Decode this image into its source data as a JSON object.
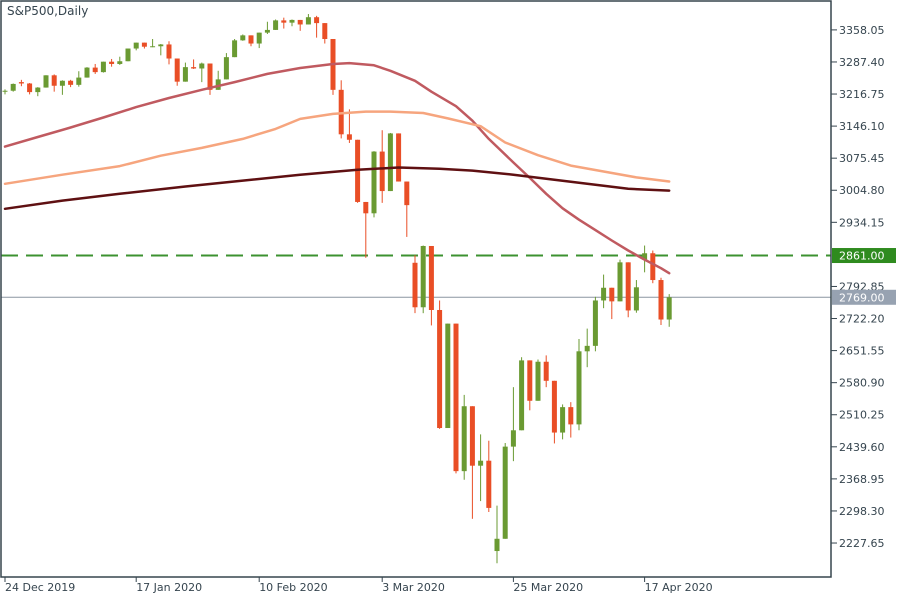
{
  "chart_data": {
    "type": "candlestick",
    "title": "S&P500,Daily",
    "symbol": "S&P500",
    "timeframe": "Daily",
    "colors": {
      "background": "#ffffff",
      "border": "#36454d",
      "axis_text": "#36454f",
      "bull": "#6a9a32",
      "bear": "#e94e26",
      "sma50": "#c05a60",
      "sma100": "#f6a57e",
      "sma200": "#5f1012",
      "dashed_level": "#3c9230",
      "dashed_badge_bg": "#2f8b1f",
      "price_line": "#8b96a1",
      "price_badge_bg": "#97a2b1",
      "badge_text": "#ffffff"
    },
    "price_axis": {
      "price_at_top": 3421.7,
      "price_at_bottom": 2152.8,
      "tick_values": [
        3358.05,
        3287.4,
        3216.75,
        3146.1,
        3075.45,
        3004.8,
        2934.15,
        2792.85,
        2722.2,
        2651.55,
        2580.9,
        2510.25,
        2439.6,
        2368.95,
        2298.3,
        2227.65
      ],
      "tick_labels": [
        "3358.05",
        "3287.40",
        "3216.75",
        "3146.10",
        "3075.45",
        "3004.80",
        "2934.15",
        "2792.85",
        "2722.20",
        "2651.55",
        "2580.90",
        "2510.25",
        "2439.60",
        "2368.95",
        "2298.30",
        "2227.65"
      ]
    },
    "time_axis": {
      "ticks": [
        {
          "label": "24 Dec 2019",
          "index": 0
        },
        {
          "label": "17 Jan 2020",
          "index": 16
        },
        {
          "label": "10 Feb 2020",
          "index": 31
        },
        {
          "label": "3 Mar 2020",
          "index": 46
        },
        {
          "label": "25 Mar 2020",
          "index": 62
        },
        {
          "label": "17 Apr 2020",
          "index": 78
        }
      ]
    },
    "hlines": [
      {
        "value": 2861.0,
        "label": "2861.00",
        "style": "dashed"
      },
      {
        "value": 2769.0,
        "label": "2769.00",
        "style": "solid"
      }
    ],
    "sma_lines": [
      {
        "name": "sma-50",
        "points": [
          [
            0,
            3101
          ],
          [
            4,
            3122
          ],
          [
            8,
            3143
          ],
          [
            12,
            3165
          ],
          [
            16,
            3188
          ],
          [
            20,
            3208
          ],
          [
            24,
            3226
          ],
          [
            28,
            3243
          ],
          [
            32,
            3261
          ],
          [
            36,
            3274
          ],
          [
            40,
            3283
          ],
          [
            42,
            3285
          ],
          [
            45,
            3280
          ],
          [
            47,
            3268
          ],
          [
            50,
            3246
          ],
          [
            52,
            3222
          ],
          [
            55,
            3190
          ],
          [
            57,
            3158
          ],
          [
            59,
            3118
          ],
          [
            62,
            3066
          ],
          [
            64,
            3032
          ],
          [
            66,
            2997
          ],
          [
            68,
            2965
          ],
          [
            70,
            2940
          ],
          [
            72,
            2917
          ],
          [
            74,
            2894
          ],
          [
            76,
            2872
          ],
          [
            78,
            2852
          ],
          [
            80,
            2833
          ],
          [
            81,
            2822
          ]
        ]
      },
      {
        "name": "sma-100",
        "points": [
          [
            0,
            3019
          ],
          [
            7,
            3039
          ],
          [
            14,
            3058
          ],
          [
            19,
            3081
          ],
          [
            24,
            3098
          ],
          [
            29,
            3118
          ],
          [
            33,
            3140
          ],
          [
            36,
            3162
          ],
          [
            40,
            3173
          ],
          [
            44,
            3178
          ],
          [
            47,
            3178
          ],
          [
            51,
            3175
          ],
          [
            54,
            3163
          ],
          [
            58,
            3146
          ],
          [
            61,
            3110
          ],
          [
            65,
            3082
          ],
          [
            69,
            3059
          ],
          [
            73,
            3046
          ],
          [
            77,
            3033
          ],
          [
            81,
            3024
          ]
        ]
      },
      {
        "name": "sma-200",
        "points": [
          [
            0,
            2964
          ],
          [
            7,
            2982
          ],
          [
            14,
            2997
          ],
          [
            22,
            3013
          ],
          [
            29,
            3026
          ],
          [
            36,
            3039
          ],
          [
            43,
            3050
          ],
          [
            48,
            3055
          ],
          [
            53,
            3052
          ],
          [
            57,
            3048
          ],
          [
            62,
            3039
          ],
          [
            67,
            3028
          ],
          [
            72,
            3017
          ],
          [
            76,
            3008
          ],
          [
            81,
            3004
          ]
        ]
      }
    ],
    "candles": [
      [
        3222,
        3227,
        3216,
        3224
      ],
      [
        3224,
        3240,
        3222,
        3239
      ],
      [
        3243,
        3248,
        3234,
        3240
      ],
      [
        3240,
        3241,
        3216,
        3221
      ],
      [
        3221,
        3232,
        3212,
        3231
      ],
      [
        3231,
        3258,
        3231,
        3258
      ],
      [
        3258,
        3260,
        3222,
        3235
      ],
      [
        3235,
        3247,
        3215,
        3246
      ],
      [
        3246,
        3248,
        3232,
        3237
      ],
      [
        3237,
        3267,
        3233,
        3253
      ],
      [
        3253,
        3276,
        3253,
        3275
      ],
      [
        3275,
        3283,
        3261,
        3265
      ],
      [
        3265,
        3288,
        3264,
        3288
      ],
      [
        3288,
        3294,
        3277,
        3283
      ],
      [
        3283,
        3299,
        3281,
        3289
      ],
      [
        3289,
        3317,
        3289,
        3317
      ],
      [
        3317,
        3330,
        3313,
        3330
      ],
      [
        3330,
        3330,
        3317,
        3321
      ],
      [
        3321,
        3338,
        3320,
        3322
      ],
      [
        3322,
        3327,
        3302,
        3326
      ],
      [
        3326,
        3333,
        3282,
        3295
      ],
      [
        3295,
        3295,
        3235,
        3244
      ],
      [
        3244,
        3286,
        3244,
        3276
      ],
      [
        3276,
        3293,
        3272,
        3273
      ],
      [
        3273,
        3286,
        3243,
        3284
      ],
      [
        3284,
        3284,
        3215,
        3226
      ],
      [
        3226,
        3268,
        3226,
        3249
      ],
      [
        3249,
        3307,
        3249,
        3298
      ],
      [
        3298,
        3338,
        3298,
        3335
      ],
      [
        3335,
        3348,
        3334,
        3346
      ],
      [
        3346,
        3346,
        3322,
        3328
      ],
      [
        3328,
        3352,
        3318,
        3352
      ],
      [
        3352,
        3376,
        3349,
        3358
      ],
      [
        3358,
        3381,
        3358,
        3379
      ],
      [
        3379,
        3385,
        3361,
        3374
      ],
      [
        3374,
        3381,
        3366,
        3380
      ],
      [
        3380,
        3380,
        3356,
        3370
      ],
      [
        3370,
        3393,
        3370,
        3386
      ],
      [
        3386,
        3389,
        3341,
        3373
      ],
      [
        3373,
        3373,
        3328,
        3338
      ],
      [
        3338,
        3338,
        3215,
        3226
      ],
      [
        3226,
        3247,
        3119,
        3128
      ],
      [
        3128,
        3183,
        3109,
        3116
      ],
      [
        3116,
        3116,
        2977,
        2979
      ],
      [
        2979,
        2979,
        2856,
        2954
      ],
      [
        2954,
        3091,
        2945,
        3090
      ],
      [
        3090,
        3137,
        2977,
        3003
      ],
      [
        3003,
        3131,
        3003,
        3130
      ],
      [
        3130,
        3130,
        3024,
        3024
      ],
      [
        3024,
        3024,
        2902,
        2972
      ],
      [
        2845,
        2862,
        2734,
        2747
      ],
      [
        2747,
        2883,
        2734,
        2882
      ],
      [
        2882,
        2882,
        2707,
        2741
      ],
      [
        2741,
        2762,
        2479,
        2481
      ],
      [
        2481,
        2711,
        2481,
        2711
      ],
      [
        2711,
        2711,
        2381,
        2386
      ],
      [
        2386,
        2554,
        2367,
        2529
      ],
      [
        2529,
        2529,
        2281,
        2398
      ],
      [
        2398,
        2467,
        2320,
        2409
      ],
      [
        2409,
        2453,
        2296,
        2305
      ],
      [
        2210,
        2310,
        2183,
        2237
      ],
      [
        2237,
        2448,
        2237,
        2440
      ],
      [
        2440,
        2571,
        2408,
        2476
      ],
      [
        2476,
        2637,
        2476,
        2630
      ],
      [
        2630,
        2630,
        2520,
        2541
      ],
      [
        2541,
        2632,
        2541,
        2627
      ],
      [
        2627,
        2641,
        2571,
        2585
      ],
      [
        2585,
        2585,
        2447,
        2471
      ],
      [
        2471,
        2533,
        2456,
        2527
      ],
      [
        2527,
        2538,
        2460,
        2489
      ],
      [
        2489,
        2677,
        2476,
        2650
      ],
      [
        2650,
        2700,
        2615,
        2662
      ],
      [
        2662,
        2770,
        2650,
        2762
      ],
      [
        2762,
        2819,
        2745,
        2790
      ],
      [
        2790,
        2790,
        2721,
        2760
      ],
      [
        2760,
        2852,
        2760,
        2846
      ],
      [
        2846,
        2846,
        2725,
        2740
      ],
      [
        2740,
        2807,
        2735,
        2791
      ],
      [
        2852,
        2883,
        2824,
        2866
      ],
      [
        2866,
        2872,
        2800,
        2807
      ],
      [
        2807,
        2812,
        2708,
        2720
      ],
      [
        2720,
        2776,
        2704,
        2769
      ]
    ]
  }
}
